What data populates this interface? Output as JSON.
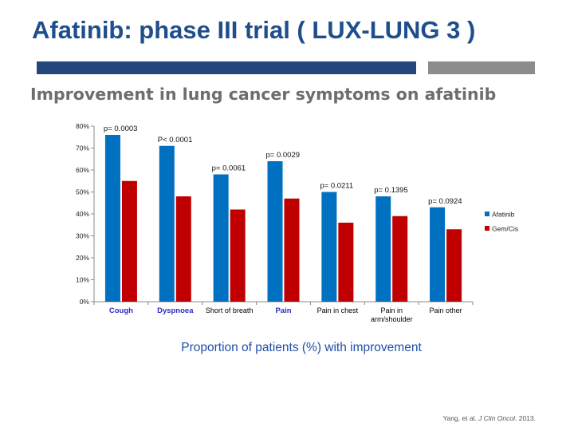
{
  "slide": {
    "title": "Afatinib: phase III trial ( LUX-LUNG 3 )",
    "subtitle": "Improvement in lung cancer symptoms  on afatinib",
    "caption": "Proportion of patients (%) with improvement",
    "citation_authors": "Yang, et al. ",
    "citation_journal": "J Clin Oncol",
    "citation_year": ". 2013."
  },
  "chart_data": {
    "type": "bar",
    "title": "",
    "xlabel": "",
    "ylabel": "",
    "ylim": [
      0,
      80
    ],
    "yticks": [
      "0%",
      "10%",
      "20%",
      "30%",
      "40%",
      "50%",
      "60%",
      "70%",
      "80%"
    ],
    "categories": [
      "Cough",
      "Dyspnoea",
      "Short of breath",
      "Pain",
      "Pain in chest",
      "Pain in arm/shoulder",
      "Pain other"
    ],
    "category_lines": [
      [
        "Cough"
      ],
      [
        "Dyspnoea"
      ],
      [
        "Short of breath"
      ],
      [
        "Pain"
      ],
      [
        "Pain in chest"
      ],
      [
        "Pain in",
        "arm/shoulder"
      ],
      [
        "Pain other"
      ]
    ],
    "category_highlight": [
      true,
      true,
      false,
      true,
      false,
      false,
      false
    ],
    "series": [
      {
        "name": "Afatinib",
        "color": "#0070c0",
        "values": [
          76,
          71,
          58,
          64,
          50,
          48,
          43
        ]
      },
      {
        "name": "Gem/Cis",
        "color": "#c00000",
        "values": [
          55,
          48,
          42,
          47,
          36,
          39,
          33
        ]
      }
    ],
    "pvalues": [
      "p= 0.0003",
      "P< 0.0001",
      "p= 0.0061",
      "p= 0.0029",
      "p= 0.0211",
      "p= 0.1395",
      "p= 0.0924"
    ],
    "legend_position": "right",
    "grid": false,
    "colors": {
      "highlight_label": "#2b2bc8",
      "normal_label": "#000000",
      "axis": "#888888"
    }
  }
}
